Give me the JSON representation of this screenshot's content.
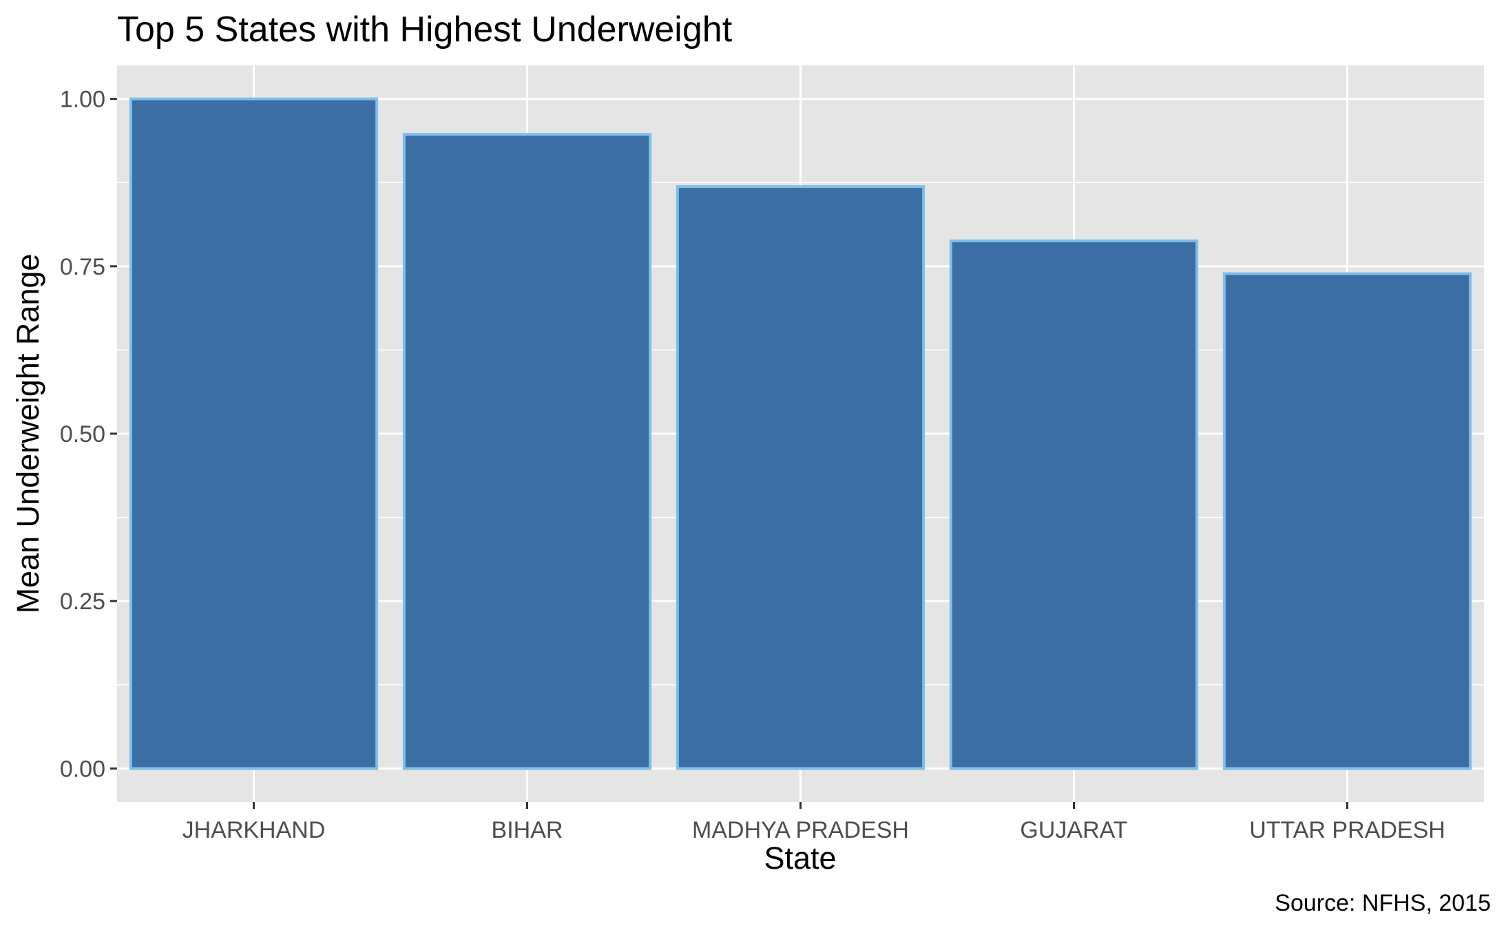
{
  "chart_data": {
    "type": "bar",
    "title": "Top 5 States with Highest Underweight",
    "xlabel": "State",
    "ylabel": "Mean Underweight Range",
    "caption": "Source: NFHS, 2015",
    "categories": [
      "JHARKHAND",
      "BIHAR",
      "MADHYA PRADESH",
      "GUJARAT",
      "UTTAR PRADESH"
    ],
    "values": [
      1.0,
      0.947,
      0.869,
      0.788,
      0.739
    ],
    "ylim": [
      -0.05,
      1.05
    ],
    "yticks": [
      0.0,
      0.25,
      0.5,
      0.75,
      1.0
    ],
    "ytick_labels": [
      "0.00",
      "0.25",
      "0.50",
      "0.75",
      "1.00"
    ],
    "grid": true,
    "colors": {
      "panel_background": "#e5e5e5",
      "grid_line": "#ffffff",
      "bar_fill": "#3a6ea5",
      "bar_outline": "#7ec0e6"
    }
  }
}
